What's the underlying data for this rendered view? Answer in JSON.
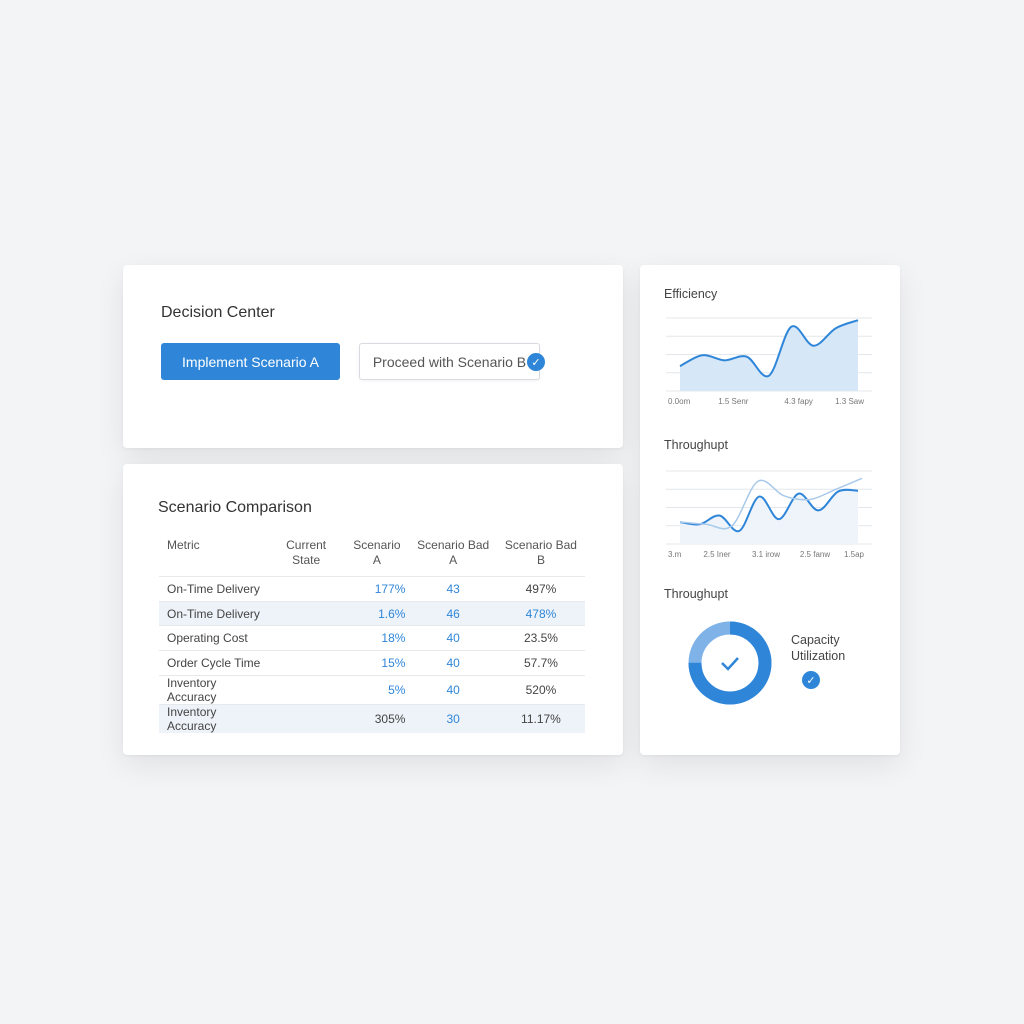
{
  "decision": {
    "title": "Decision Center",
    "primary_label": "Implement Scenario A",
    "secondary_label": "Proceed with Scenario B",
    "accent": "#2f86d9"
  },
  "comparison": {
    "title": "Scenario Comparison",
    "headers": [
      "Metric",
      "Current State",
      "Scenario A",
      "Scenario Bad A",
      "Scenario Bad B"
    ],
    "rows": [
      [
        "On-Time Delivery",
        "",
        "177%",
        "43",
        "497%"
      ],
      [
        "On-Time Delivery",
        "",
        "1.6%",
        "46",
        "478%"
      ],
      [
        "Operating Cost",
        "",
        "18%",
        "40",
        "23.5%"
      ],
      [
        "Order Cycle Time",
        "",
        "15%",
        "40",
        "57.7%"
      ],
      [
        "Inventory Accuracy",
        "",
        "5%",
        "40",
        "520%"
      ],
      [
        "Inventory Accuracy",
        "",
        "305%",
        "30",
        "11.17%"
      ]
    ]
  },
  "chart_data": [
    {
      "type": "area",
      "title": "Efficiency",
      "x_ticks": [
        "0.0om",
        "1.5 Senr",
        "4.3 fapy",
        "1.3 Saw"
      ],
      "grid": true,
      "ylim": [
        0,
        100
      ],
      "series": [
        {
          "values": [
            34,
            49,
            42,
            47,
            21,
            88,
            62,
            86,
            97
          ]
        }
      ]
    },
    {
      "type": "line",
      "title": "Throughupt",
      "x_ticks": [
        "3.m",
        "2.5 Iner",
        "3.1 irow",
        "2.5 fanw",
        "1.5ap"
      ],
      "grid": true,
      "ylim": [
        0,
        100
      ],
      "series": [
        {
          "values": [
            30,
            27,
            39,
            18,
            65,
            34,
            69,
            46,
            72,
            73
          ]
        },
        {
          "values": [
            30,
            27,
            25,
            86,
            66,
            61,
            75,
            90
          ]
        }
      ]
    }
  ],
  "gauge": {
    "title": "Throughupt",
    "label_line1": "Capacity",
    "label_line2": "Utilization",
    "fraction": 0.75
  }
}
